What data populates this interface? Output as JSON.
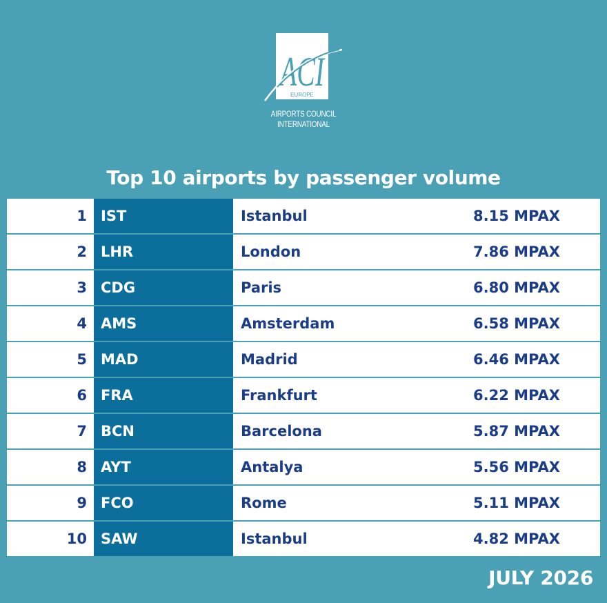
{
  "logo": {
    "mark": "ACI",
    "region": "EUROPE",
    "line1": "AIRPORTS COUNCIL",
    "line2": "INTERNATIONAL"
  },
  "title": "Top 10 airports by passenger volume",
  "rows": [
    {
      "rank": "1",
      "code": "IST",
      "city": "Istanbul",
      "pax": "8.15 MPAX"
    },
    {
      "rank": "2",
      "code": "LHR",
      "city": "London",
      "pax": "7.86 MPAX"
    },
    {
      "rank": "3",
      "code": "CDG",
      "city": "Paris",
      "pax": "6.80 MPAX"
    },
    {
      "rank": "4",
      "code": "AMS",
      "city": "Amsterdam",
      "pax": "6.58 MPAX"
    },
    {
      "rank": "5",
      "code": "MAD",
      "city": "Madrid",
      "pax": "6.46 MPAX"
    },
    {
      "rank": "6",
      "code": "FRA",
      "city": "Frankfurt",
      "pax": "6.22 MPAX"
    },
    {
      "rank": "7",
      "code": "BCN",
      "city": "Barcelona",
      "pax": "5.87 MPAX"
    },
    {
      "rank": "8",
      "code": "AYT",
      "city": "Antalya",
      "pax": "5.56 MPAX"
    },
    {
      "rank": "9",
      "code": "FCO",
      "city": "Rome",
      "pax": "5.11 MPAX"
    },
    {
      "rank": "10",
      "code": "SAW",
      "city": "Istanbul",
      "pax": "4.82 MPAX"
    }
  ],
  "date": "JULY 2026",
  "colors": {
    "background": "#4aa0b5",
    "code_column": "#0b6e9b",
    "text_dark": "#1b3d88",
    "white": "#ffffff"
  }
}
